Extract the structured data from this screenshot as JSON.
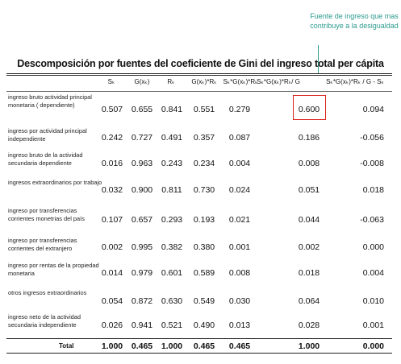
{
  "annotation": "Fuente de ingreso que mas contribuye a la desigualdad",
  "title": "Descomposición por fuentes del coeficiente de Gini del ingreso total per cápita",
  "headers": [
    "Sₖ",
    "G(xₖ)",
    "Rₖ",
    "G(xₖ)*Rₖ",
    "Sₖ*G(xₖ)*Rₖ",
    "Sₖ*G(xₖ)*Rₖ/ G",
    "Sₖ*G(xₖ)*Rₖ / G - Sₖ"
  ],
  "rows": [
    {
      "label": "ingreso bruto actividad principal monetaria ( dependiente)",
      "values": [
        "0.507",
        "0.655",
        "0.841",
        "0.551",
        "0.279",
        "0.600",
        "0.094"
      ]
    },
    {
      "label": "ingreso por actividad principal independiente",
      "values": [
        "0.242",
        "0.727",
        "0.491",
        "0.357",
        "0.087",
        "0.186",
        "-0.056"
      ]
    },
    {
      "label": "ingreso bruto de la actividad secundaria dependiente",
      "values": [
        "0.016",
        "0.963",
        "0.243",
        "0.234",
        "0.004",
        "0.008",
        "-0.008"
      ]
    },
    {
      "label": "ingresos extraordinarios por trabajo",
      "values": [
        "0.032",
        "0.900",
        "0.811",
        "0.730",
        "0.024",
        "0.051",
        "0.018"
      ]
    },
    {
      "label": "ingreso por transferencias corrientes monetrias del país",
      "values": [
        "0.107",
        "0.657",
        "0.293",
        "0.193",
        "0.021",
        "0.044",
        "-0.063"
      ]
    },
    {
      "label": "ingreso por transferencias corrientes del extranjero",
      "values": [
        "0.002",
        "0.995",
        "0.382",
        "0.380",
        "0.001",
        "0.002",
        "0.000"
      ]
    },
    {
      "label": "ingreso por rentas de la propiedad monetaria",
      "values": [
        "0.014",
        "0.979",
        "0.601",
        "0.589",
        "0.008",
        "0.018",
        "0.004"
      ]
    },
    {
      "label": "otros ingresos extraordinarios",
      "values": [
        "0.054",
        "0.872",
        "0.630",
        "0.549",
        "0.030",
        "0.064",
        "0.010"
      ]
    },
    {
      "label": "ingreso neto de la actividad secundaria independiente",
      "values": [
        "0.026",
        "0.941",
        "0.521",
        "0.490",
        "0.013",
        "0.028",
        "0.001"
      ]
    }
  ],
  "total": {
    "label": "Total",
    "values": [
      "1.000",
      "0.465",
      "1.000",
      "0.465",
      "0.465",
      "1.000",
      "0.000"
    ]
  },
  "colors": {
    "annotation": "#2b9a8d",
    "highlight": "#d9231c"
  }
}
